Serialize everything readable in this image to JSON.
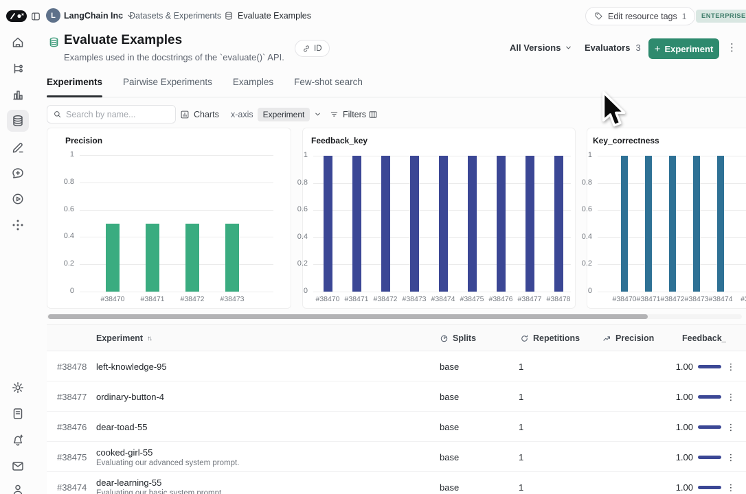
{
  "topbar": {
    "org": "LangChain Inc",
    "breadcrumbs": [
      "Datasets & Experiments",
      "Evaluate Examples"
    ],
    "edit_tags": {
      "label": "Edit resource tags",
      "count": "1"
    },
    "plan_badge": "ENTERPRISE"
  },
  "header": {
    "title": "Evaluate Examples",
    "subtitle": "Examples used in the docstrings of the `evaluate()` API.",
    "id_button": "ID",
    "versions_button": "All Versions",
    "evaluators": {
      "label": "Evaluators",
      "count": "3"
    },
    "new_experiment_button": "Experiment"
  },
  "tabs": [
    {
      "label": "Experiments",
      "active": true
    },
    {
      "label": "Pairwise Experiments",
      "active": false
    },
    {
      "label": "Examples",
      "active": false
    },
    {
      "label": "Few-shot search",
      "active": false
    }
  ],
  "toolbar": {
    "search_placeholder": "Search by name...",
    "charts_button": "Charts",
    "xaxis_label": "x-axis",
    "xaxis_value": "Experiment",
    "filters_button": "Filters"
  },
  "chart_data": [
    {
      "type": "bar",
      "title": "Precision",
      "categories": [
        "#38470",
        "#38471",
        "#38472",
        "#38473"
      ],
      "values": [
        0.5,
        0.5,
        0.5,
        0.5
      ],
      "xlabel": "",
      "ylabel": "",
      "ylim": [
        0,
        1
      ],
      "yticks": [
        0,
        0.2,
        0.4,
        0.6,
        0.8,
        1
      ],
      "grid": true,
      "legend": "none",
      "bar_color": "#3aac80"
    },
    {
      "type": "bar",
      "title": "Feedback_key",
      "categories": [
        "#38470",
        "#38471",
        "#38472",
        "#38473",
        "#38474",
        "#38475",
        "#38476",
        "#38477",
        "#38478"
      ],
      "values": [
        1,
        1,
        1,
        1,
        1,
        1,
        1,
        1,
        1
      ],
      "xlabel": "",
      "ylabel": "",
      "ylim": [
        0,
        1
      ],
      "yticks": [
        0,
        0.2,
        0.4,
        0.6,
        0.8,
        1
      ],
      "grid": true,
      "legend": "none",
      "bar_color": "#3b4795"
    },
    {
      "type": "bar",
      "title": "Key_correctness",
      "categories": [
        "#38470",
        "#38471",
        "#38472",
        "#38473",
        "#38474",
        "#3"
      ],
      "values": [
        1,
        1,
        1,
        1,
        1
      ],
      "xlabel": "",
      "ylabel": "",
      "ylim": [
        0,
        1
      ],
      "yticks": [
        0,
        0.2,
        0.4,
        0.6,
        0.8,
        1
      ],
      "grid": true,
      "legend": "none",
      "clipped_right": true,
      "bar_color": "#2e7195"
    }
  ],
  "table": {
    "columns": [
      "Experiment",
      "Splits",
      "Repetitions",
      "Precision",
      "Feedback_key"
    ],
    "rows": [
      {
        "id": "#38478",
        "name": "left-knowledge-95",
        "description": "",
        "splits": "base",
        "repetitions": "1",
        "feedback": "1.00"
      },
      {
        "id": "#38477",
        "name": "ordinary-button-4",
        "description": "",
        "splits": "base",
        "repetitions": "1",
        "feedback": "1.00"
      },
      {
        "id": "#38476",
        "name": "dear-toad-55",
        "description": "",
        "splits": "base",
        "repetitions": "1",
        "feedback": "1.00"
      },
      {
        "id": "#38475",
        "name": "cooked-girl-55",
        "description": "Evaluating our advanced system prompt.",
        "splits": "base",
        "repetitions": "1",
        "feedback": "1.00"
      },
      {
        "id": "#38474",
        "name": "dear-learning-55",
        "description": "Evaluating our basic system prompt.",
        "splits": "base",
        "repetitions": "1",
        "feedback": "1.00"
      }
    ]
  },
  "colors": {
    "accent_teal": "#2e8a6e",
    "enterprise_badge_bg": "#d9e7e2",
    "enterprise_badge_text": "#44806e",
    "precision_bars": "#3aac80",
    "feedback_bars": "#3b4795",
    "correctness_bars": "#2e7195",
    "inline_feedback_bar": "#3b4795"
  }
}
